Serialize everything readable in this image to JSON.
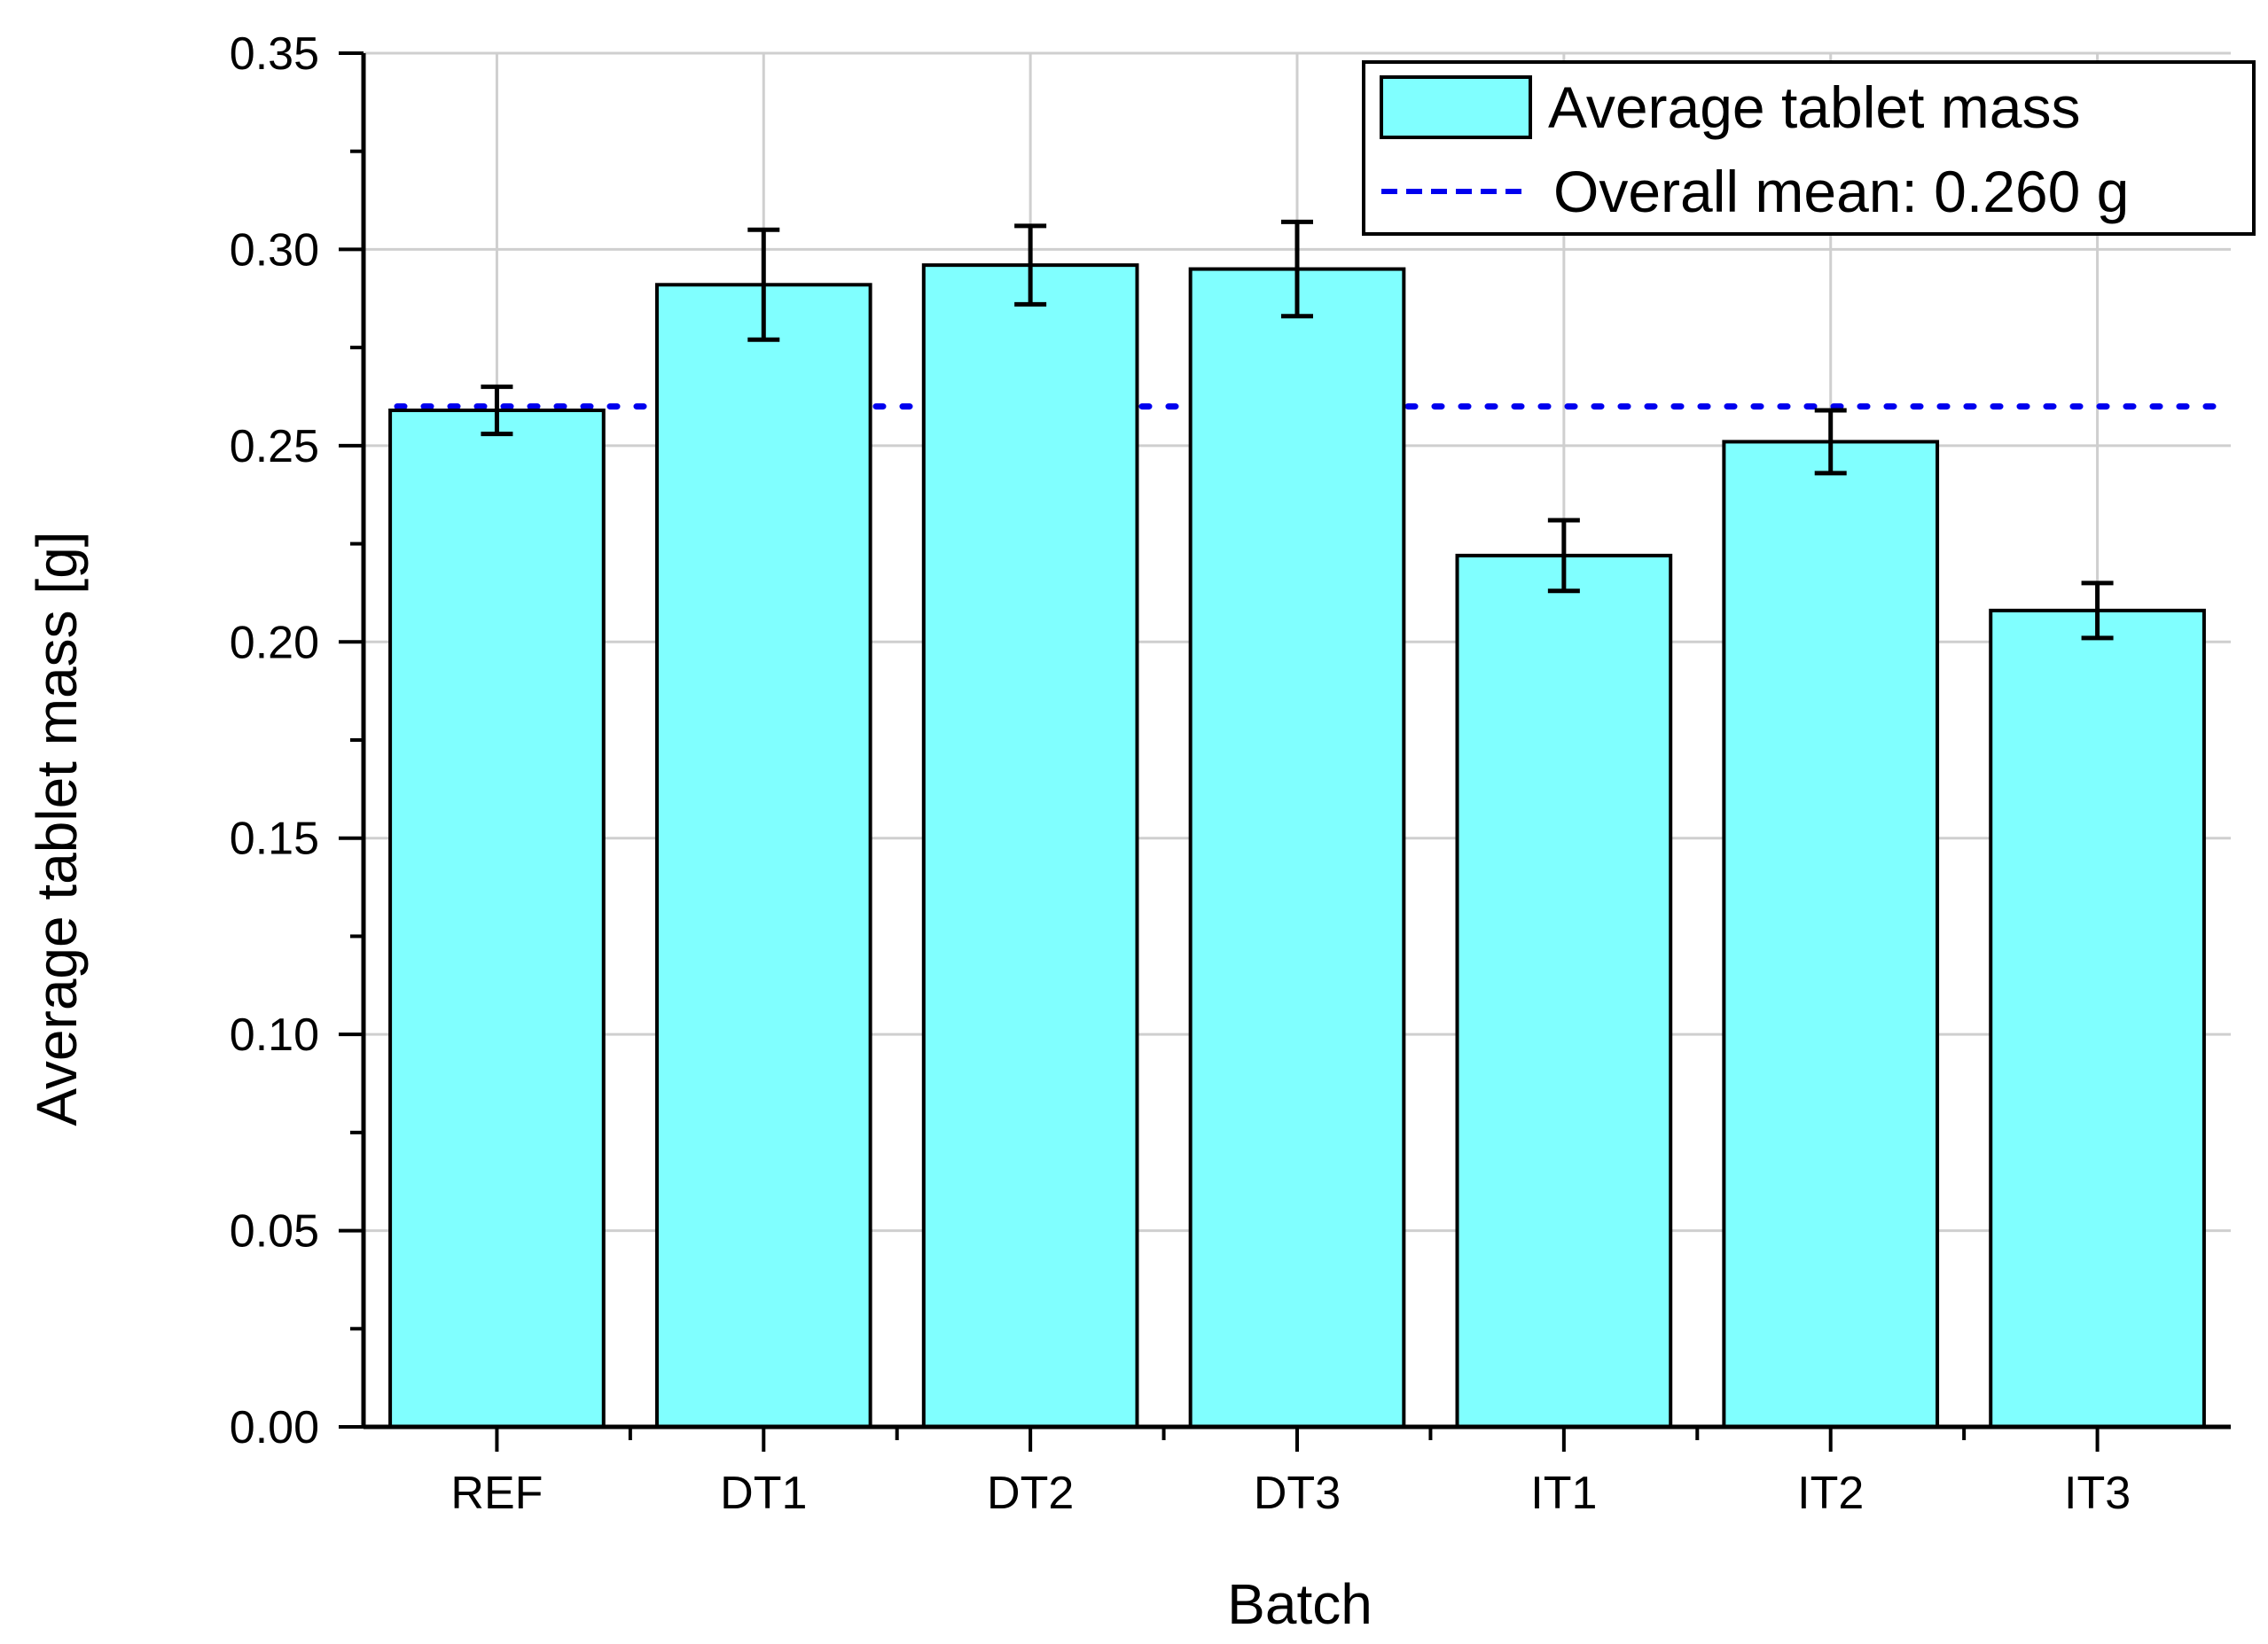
{
  "chart_data": {
    "type": "bar",
    "title": "",
    "xlabel": "Batch",
    "ylabel": "Average tablet mass [g]",
    "categories": [
      "REF",
      "DT1",
      "DT2",
      "DT3",
      "IT1",
      "IT2",
      "IT3"
    ],
    "series": [
      {
        "name": "Average tablet mass",
        "values": [
          0.259,
          0.291,
          0.296,
          0.295,
          0.222,
          0.251,
          0.208
        ],
        "errors": [
          0.006,
          0.014,
          0.01,
          0.012,
          0.009,
          0.008,
          0.007
        ],
        "color": "#80ffff"
      }
    ],
    "reference_line": {
      "label": "Overall mean: 0.260 g",
      "value": 0.26,
      "color": "#0000ee"
    },
    "ylim": [
      0,
      0.35
    ],
    "yticks": [
      "0.00",
      "0.05",
      "0.10",
      "0.15",
      "0.20",
      "0.25",
      "0.30",
      "0.35"
    ],
    "grid": true,
    "legend_position": "top-right"
  }
}
